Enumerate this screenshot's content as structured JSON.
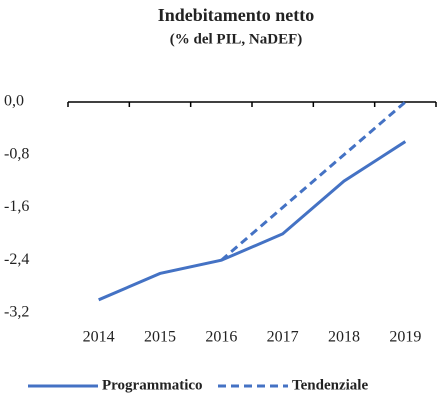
{
  "chart_data": {
    "type": "line",
    "title": "Indebitamento netto",
    "subtitle": "(% del PIL, NaDEF)",
    "categories": [
      "2014",
      "2015",
      "2016",
      "2017",
      "2018",
      "2019"
    ],
    "series": [
      {
        "name": "Programmatico",
        "color": "#4472c4",
        "dash": false,
        "values": [
          -3.0,
          -2.6,
          -2.4,
          -2.0,
          -1.2,
          -0.6
        ]
      },
      {
        "name": "Tendenziale",
        "color": "#4472c4",
        "dash": true,
        "values": [
          null,
          null,
          -2.4,
          -1.6,
          -0.8,
          0.0
        ]
      }
    ],
    "ylim": [
      -3.2,
      0
    ],
    "yticks": [
      {
        "value": 0,
        "label": "0,0"
      },
      {
        "value": -0.8,
        "label": "-0,8"
      },
      {
        "value": -1.6,
        "label": "-1,6"
      },
      {
        "value": -2.4,
        "label": "-2,4"
      },
      {
        "value": -3.2,
        "label": "-3,2"
      }
    ],
    "grid": false,
    "legend": "bottom"
  }
}
